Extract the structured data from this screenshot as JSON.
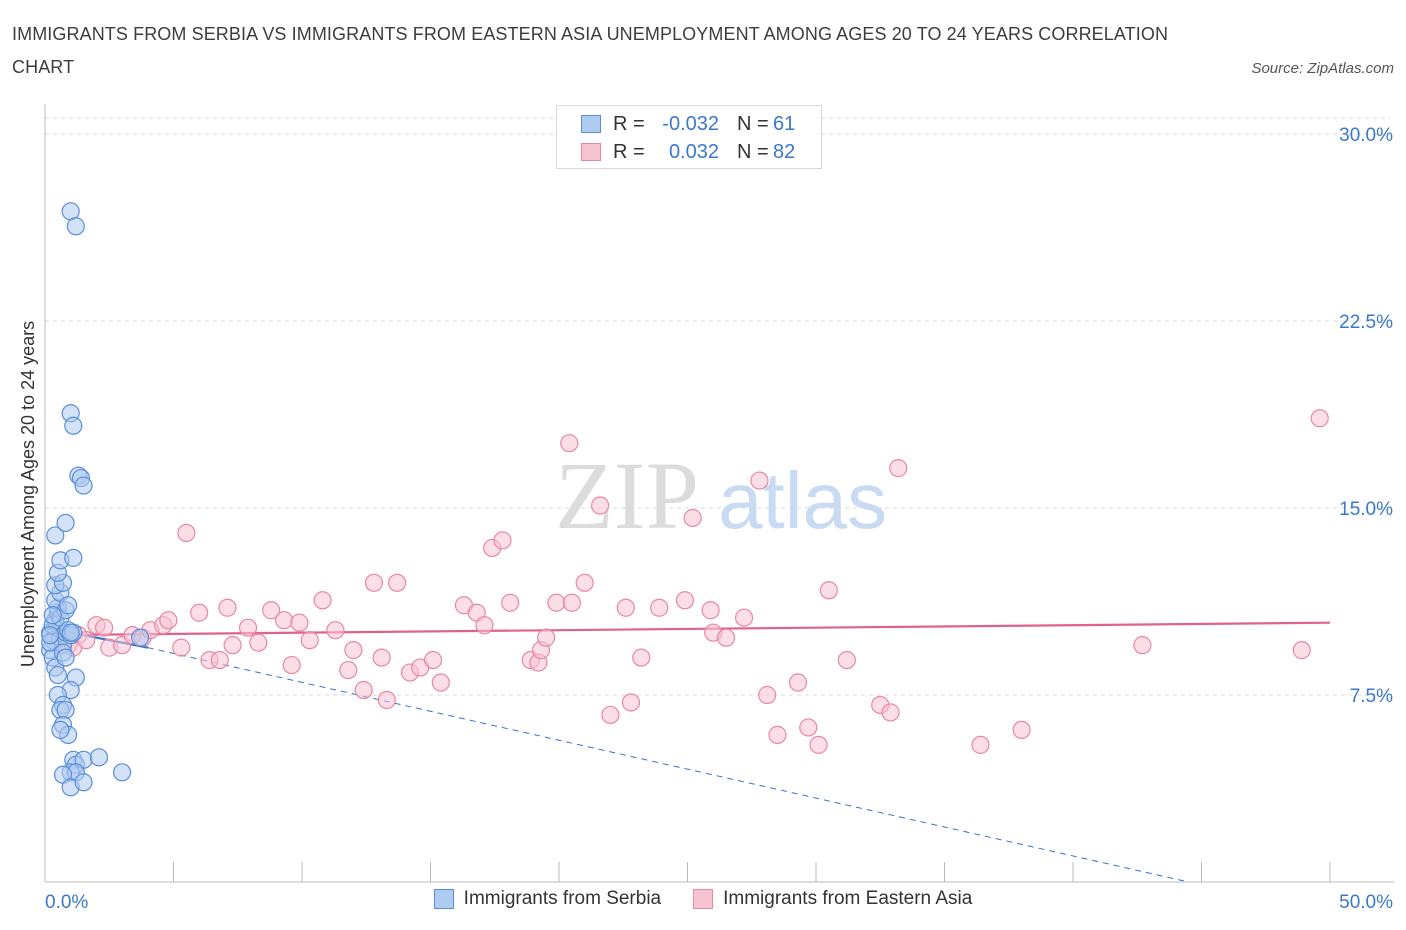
{
  "title": "IMMIGRANTS FROM SERBIA VS IMMIGRANTS FROM EASTERN ASIA UNEMPLOYMENT AMONG AGES 20 TO 24 YEARS CORRELATION CHART",
  "source": "Source: ZipAtlas.com",
  "watermark": {
    "zip": "ZIP",
    "atlas": "atlas"
  },
  "legend": {
    "r_label": "R =",
    "n_label": "N =",
    "serbia": {
      "r": "-0.032",
      "n": "61"
    },
    "eastern_asia": {
      "r": "0.032",
      "n": "82"
    }
  },
  "colors": {
    "serbia_fill": "#aecbf0",
    "serbia_stroke": "#5a8fd8",
    "serbia_line": "#3a6fd0",
    "asia_fill": "#f7c3d3",
    "asia_stroke": "#e8889f",
    "asia_line": "#e0628a",
    "tick_label": "#3a78c9",
    "grid": "#d9d9d9"
  },
  "chart_data": {
    "type": "scatter",
    "title": "IMMIGRANTS FROM SERBIA VS IMMIGRANTS FROM EASTERN ASIA UNEMPLOYMENT AMONG AGES 20 TO 24 YEARS CORRELATION CHART",
    "xlabel": "",
    "ylabel": "Unemployment Among Ages 20 to 24 years",
    "xlim": [
      0,
      50
    ],
    "ylim": [
      0,
      30
    ],
    "x_tick_labels": [
      "0.0%",
      "50.0%"
    ],
    "y_ticks": [
      7.5,
      15.0,
      22.5,
      30.0
    ],
    "y_tick_labels": [
      "7.5%",
      "15.0%",
      "22.5%",
      "30.0%"
    ],
    "grid": true,
    "legend_position": "top-center",
    "series": [
      {
        "name": "Immigrants from Serbia",
        "r": -0.032,
        "n": 61,
        "trend": {
          "x": [
            0,
            4.0
          ],
          "y": [
            10.2,
            9.4
          ]
        },
        "trend_extended": {
          "x": [
            4.0,
            44.5
          ],
          "y": [
            9.4,
            0.0
          ]
        },
        "points": [
          [
            0.2,
            10.0
          ],
          [
            0.3,
            9.7
          ],
          [
            0.2,
            9.3
          ],
          [
            0.4,
            10.5
          ],
          [
            0.3,
            9.0
          ],
          [
            0.5,
            10.8
          ],
          [
            0.6,
            9.8
          ],
          [
            0.4,
            8.6
          ],
          [
            0.7,
            9.5
          ],
          [
            0.5,
            11.0
          ],
          [
            0.3,
            10.3
          ],
          [
            0.8,
            10.0
          ],
          [
            0.6,
            10.6
          ],
          [
            0.2,
            9.6
          ],
          [
            0.9,
            10.1
          ],
          [
            0.4,
            11.3
          ],
          [
            0.7,
            9.2
          ],
          [
            1.0,
            9.9
          ],
          [
            0.5,
            8.3
          ],
          [
            0.8,
            10.9
          ],
          [
            1.1,
            10.0
          ],
          [
            0.3,
            10.7
          ],
          [
            0.6,
            11.6
          ],
          [
            0.9,
            11.1
          ],
          [
            0.2,
            9.9
          ],
          [
            0.4,
            11.9
          ],
          [
            0.7,
            12.0
          ],
          [
            0.5,
            12.4
          ],
          [
            0.6,
            12.9
          ],
          [
            1.1,
            13.0
          ],
          [
            0.4,
            13.9
          ],
          [
            0.8,
            14.4
          ],
          [
            1.3,
            16.3
          ],
          [
            1.4,
            16.2
          ],
          [
            1.5,
            15.9
          ],
          [
            1.0,
            18.8
          ],
          [
            1.1,
            18.3
          ],
          [
            1.0,
            26.9
          ],
          [
            1.2,
            26.3
          ],
          [
            1.2,
            8.2
          ],
          [
            1.0,
            7.7
          ],
          [
            0.5,
            7.5
          ],
          [
            0.7,
            7.1
          ],
          [
            0.6,
            6.9
          ],
          [
            0.8,
            6.9
          ],
          [
            0.7,
            6.3
          ],
          [
            0.9,
            5.9
          ],
          [
            0.6,
            6.1
          ],
          [
            1.1,
            4.9
          ],
          [
            1.2,
            4.7
          ],
          [
            1.5,
            4.9
          ],
          [
            2.1,
            5.0
          ],
          [
            3.0,
            4.4
          ],
          [
            1.0,
            4.4
          ],
          [
            1.2,
            4.4
          ],
          [
            0.7,
            4.3
          ],
          [
            1.0,
            3.8
          ],
          [
            1.5,
            4.0
          ],
          [
            1.0,
            10.0
          ],
          [
            0.8,
            9.0
          ],
          [
            3.7,
            9.8
          ]
        ]
      },
      {
        "name": "Immigrants from Eastern Asia",
        "r": 0.032,
        "n": 82,
        "trend": {
          "x": [
            0,
            50
          ],
          "y": [
            9.9,
            10.4
          ]
        },
        "points": [
          [
            0.9,
            9.5
          ],
          [
            1.3,
            9.9
          ],
          [
            1.1,
            9.4
          ],
          [
            1.6,
            9.7
          ],
          [
            2.0,
            10.3
          ],
          [
            2.3,
            10.2
          ],
          [
            2.5,
            9.4
          ],
          [
            3.0,
            9.5
          ],
          [
            3.4,
            9.9
          ],
          [
            3.8,
            9.8
          ],
          [
            4.1,
            10.1
          ],
          [
            4.6,
            10.3
          ],
          [
            4.8,
            10.5
          ],
          [
            5.3,
            9.4
          ],
          [
            5.5,
            14.0
          ],
          [
            6.0,
            10.8
          ],
          [
            6.4,
            8.9
          ],
          [
            6.8,
            8.9
          ],
          [
            7.1,
            11.0
          ],
          [
            7.3,
            9.5
          ],
          [
            7.9,
            10.2
          ],
          [
            8.3,
            9.6
          ],
          [
            8.8,
            10.9
          ],
          [
            9.3,
            10.5
          ],
          [
            9.6,
            8.7
          ],
          [
            9.9,
            10.4
          ],
          [
            10.3,
            9.7
          ],
          [
            10.8,
            11.3
          ],
          [
            11.3,
            10.1
          ],
          [
            11.8,
            8.5
          ],
          [
            12.0,
            9.3
          ],
          [
            12.4,
            7.7
          ],
          [
            12.8,
            12.0
          ],
          [
            13.1,
            9.0
          ],
          [
            13.3,
            7.3
          ],
          [
            13.7,
            12.0
          ],
          [
            14.2,
            8.4
          ],
          [
            14.6,
            8.6
          ],
          [
            15.1,
            8.9
          ],
          [
            15.4,
            8.0
          ],
          [
            16.3,
            11.1
          ],
          [
            16.8,
            10.8
          ],
          [
            17.1,
            10.3
          ],
          [
            17.4,
            13.4
          ],
          [
            17.8,
            13.7
          ],
          [
            18.1,
            11.2
          ],
          [
            18.9,
            8.9
          ],
          [
            19.2,
            8.8
          ],
          [
            19.3,
            9.3
          ],
          [
            19.5,
            9.8
          ],
          [
            19.9,
            11.2
          ],
          [
            20.4,
            17.6
          ],
          [
            20.5,
            11.2
          ],
          [
            21.0,
            12.0
          ],
          [
            21.6,
            15.1
          ],
          [
            22.0,
            6.7
          ],
          [
            22.6,
            11.0
          ],
          [
            22.8,
            7.2
          ],
          [
            23.2,
            9.0
          ],
          [
            23.9,
            11.0
          ],
          [
            24.9,
            11.3
          ],
          [
            25.2,
            14.6
          ],
          [
            25.9,
            10.9
          ],
          [
            26.0,
            10.0
          ],
          [
            26.5,
            9.8
          ],
          [
            27.2,
            10.6
          ],
          [
            27.8,
            16.1
          ],
          [
            28.1,
            7.5
          ],
          [
            28.5,
            5.9
          ],
          [
            29.3,
            8.0
          ],
          [
            29.7,
            6.2
          ],
          [
            30.1,
            5.5
          ],
          [
            30.5,
            11.7
          ],
          [
            31.2,
            8.9
          ],
          [
            32.5,
            7.1
          ],
          [
            32.9,
            6.8
          ],
          [
            33.2,
            16.6
          ],
          [
            36.4,
            5.5
          ],
          [
            38.0,
            6.1
          ],
          [
            42.7,
            9.5
          ],
          [
            48.9,
            9.3
          ],
          [
            49.6,
            18.6
          ]
        ]
      }
    ]
  }
}
